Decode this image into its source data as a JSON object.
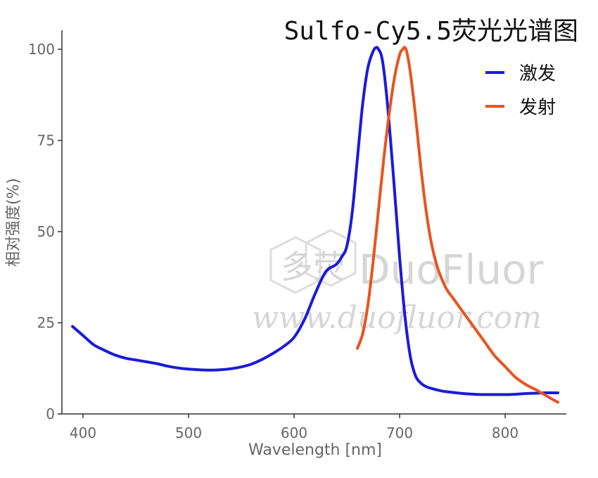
{
  "chart_data": {
    "type": "line",
    "title": "Sulfo-Cy5.5荧光光谱图",
    "xlabel": "Wavelength [nm]",
    "ylabel": "相对强度(%)",
    "xlim": [
      390,
      850
    ],
    "ylim": [
      0,
      105
    ],
    "xticks": [
      400,
      500,
      600,
      700,
      800
    ],
    "yticks": [
      0,
      25,
      50,
      75,
      100
    ],
    "grid": false,
    "legend_position": "top-right",
    "series": [
      {
        "name": "激发",
        "color": "#1a1adb",
        "x": [
          390,
          400,
          410,
          420,
          430,
          440,
          450,
          460,
          470,
          480,
          490,
          500,
          510,
          520,
          530,
          540,
          550,
          560,
          570,
          580,
          590,
          600,
          610,
          620,
          630,
          640,
          645,
          650,
          655,
          660,
          665,
          670,
          675,
          678,
          680,
          683,
          686,
          690,
          695,
          700,
          705,
          710,
          715,
          720,
          725,
          730,
          740,
          750,
          760,
          770,
          780,
          790,
          800,
          810,
          820,
          830,
          840,
          850
        ],
        "y": [
          24,
          21.5,
          19,
          17.5,
          16.2,
          15.3,
          14.8,
          14.3,
          13.8,
          13.1,
          12.6,
          12.3,
          12.1,
          12.0,
          12.1,
          12.4,
          12.9,
          13.7,
          15.0,
          16.6,
          18.5,
          21.0,
          26,
          33,
          39,
          41,
          43,
          46,
          55,
          70,
          85,
          95,
          99.5,
          100.5,
          100,
          98,
          92,
          80,
          62,
          43,
          27,
          16,
          10.5,
          8.5,
          7.5,
          7.0,
          6.3,
          5.9,
          5.6,
          5.4,
          5.3,
          5.3,
          5.3,
          5.4,
          5.6,
          5.7,
          5.8,
          5.8
        ]
      },
      {
        "name": "发射",
        "color": "#e8541e",
        "x": [
          660,
          665,
          670,
          675,
          680,
          685,
          690,
          695,
          700,
          703,
          705,
          707,
          710,
          715,
          720,
          725,
          730,
          735,
          740,
          745,
          750,
          760,
          770,
          780,
          790,
          800,
          810,
          820,
          830,
          840,
          850
        ],
        "y": [
          18,
          22,
          30,
          42,
          56,
          70,
          82,
          92,
          98.5,
          100,
          100.5,
          99,
          94,
          82,
          68,
          56,
          47,
          41,
          37,
          34,
          32,
          28,
          24,
          20,
          16,
          13,
          10,
          8,
          6.5,
          4.8,
          3.2
        ]
      }
    ]
  },
  "watermark": {
    "logo_chinese": "多荧",
    "brand": "DuoFluor",
    "url": "www.duofluor.com"
  }
}
